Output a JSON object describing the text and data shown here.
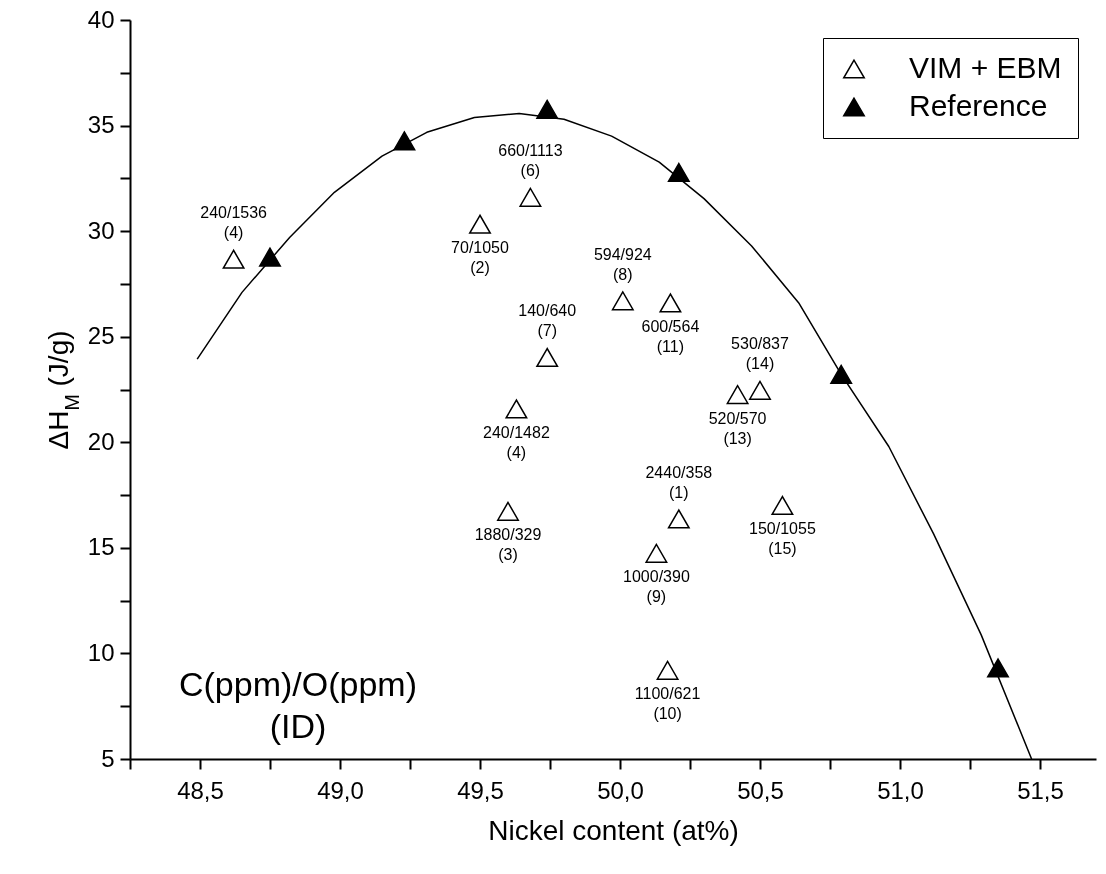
{
  "chart_data": {
    "type": "scatter",
    "xlabel": "Nickel content (at%)",
    "ylabel": "ΔH$_{M}$ (J/g)",
    "xlim": [
      48.25,
      51.7
    ],
    "ylim": [
      5,
      40
    ],
    "xticks": [
      {
        "value": 48.25,
        "label": null
      },
      {
        "value": 48.5,
        "label": "48,5"
      },
      {
        "value": 48.75,
        "label": null
      },
      {
        "value": 49.0,
        "label": "49,0"
      },
      {
        "value": 49.25,
        "label": null
      },
      {
        "value": 49.5,
        "label": "49,5"
      },
      {
        "value": 49.75,
        "label": null
      },
      {
        "value": 50.0,
        "label": "50,0"
      },
      {
        "value": 50.25,
        "label": null
      },
      {
        "value": 50.5,
        "label": "50,5"
      },
      {
        "value": 50.75,
        "label": null
      },
      {
        "value": 51.0,
        "label": "51,0"
      },
      {
        "value": 51.25,
        "label": null
      },
      {
        "value": 51.5,
        "label": "51,5"
      }
    ],
    "yticks": [
      5,
      {
        "value": 7.5,
        "label": null
      },
      10,
      {
        "value": 12.5,
        "label": null
      },
      15,
      {
        "value": 17.5,
        "label": null
      },
      20,
      {
        "value": 22.5,
        "label": null
      },
      25,
      {
        "value": 27.5,
        "label": null
      },
      30,
      {
        "value": 32.5,
        "label": null
      },
      35,
      {
        "value": 37.5,
        "label": null
      },
      40
    ],
    "grid": false,
    "legend": "top right",
    "marker": "triangle",
    "series": [
      {
        "name": "VIM + EBM",
        "color": "#ffffff",
        "x": [
          48.62,
          49.5,
          49.68,
          50.01,
          49.74,
          50.18,
          50.5,
          50.42,
          49.63,
          50.21,
          50.58,
          49.6,
          50.13,
          50.17
        ],
        "values": [
          28.67,
          30.33,
          31.6,
          26.7,
          24.02,
          26.6,
          22.46,
          22.26,
          21.58,
          16.37,
          17.01,
          16.73,
          14.74,
          9.2
        ]
      },
      {
        "name": "Reference",
        "color": "#000000",
        "x": [
          48.75,
          49.23,
          49.74,
          50.21,
          50.79,
          51.35
        ],
        "values": [
          28.77,
          34.28,
          35.77,
          32.78,
          23.22,
          9.31
        ]
      },
      {
        "type": "line",
        "color": "#000000",
        "marker": "none",
        "x": [
          48.49,
          48.65,
          48.82,
          48.98,
          49.15,
          49.31,
          49.48,
          49.64,
          49.8,
          49.97,
          50.14,
          50.3,
          50.47,
          50.64,
          50.79,
          50.96,
          51.12,
          51.29,
          51.47
        ],
        "values": [
          23.94,
          27.1,
          29.7,
          31.84,
          33.55,
          34.68,
          35.38,
          35.57,
          35.3,
          34.5,
          33.27,
          31.54,
          29.3,
          26.57,
          23.22,
          19.8,
          15.66,
          10.88,
          5.0
        ]
      }
    ],
    "annotations": [
      {
        "text": "240/1536\n(4)",
        "x": 48.62,
        "y": 28.67
      },
      {
        "text": "70/1050\n(2)",
        "x": 49.5,
        "y": 30.33
      },
      {
        "text": "660/1113\n(6)",
        "x": 49.68,
        "y": 31.6
      },
      {
        "text": "594/924\n(8)",
        "x": 50.01,
        "y": 26.7
      },
      {
        "text": "140/640\n(7)",
        "x": 49.74,
        "y": 24.02
      },
      {
        "text": "600/564\n(11)",
        "x": 50.18,
        "y": 26.6
      },
      {
        "text": "530/837\n(14)",
        "x": 50.5,
        "y": 22.46
      },
      {
        "text": "520/570\n(13)",
        "x": 50.42,
        "y": 22.26
      },
      {
        "text": "240/1482\n(4)",
        "x": 49.63,
        "y": 21.58
      },
      {
        "text": "2440/358\n(1)",
        "x": 50.21,
        "y": 16.37
      },
      {
        "text": "150/1055\n(15)",
        "x": 50.58,
        "y": 17.01
      },
      {
        "text": "1880/329\n(3)",
        "x": 49.6,
        "y": 16.73
      },
      {
        "text": "1000/390\n(9)",
        "x": 50.13,
        "y": 14.74
      },
      {
        "text": "1100/621\n(10)",
        "x": 50.17,
        "y": 9.2
      },
      "C(ppm)/O(ppm)\n(ID)"
    ]
  }
}
